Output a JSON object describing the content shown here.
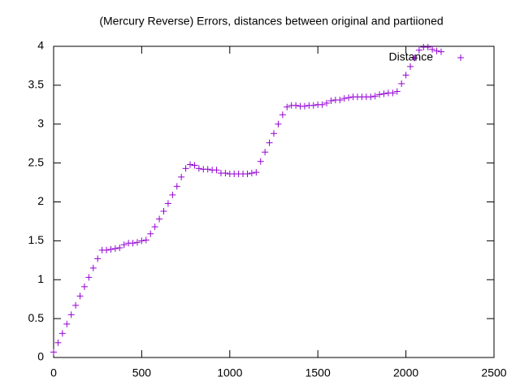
{
  "chart_data": {
    "type": "scatter",
    "title": "(Mercury Reverse) Errors, distances between original and partiioned",
    "x": [
      0,
      25,
      50,
      75,
      100,
      125,
      150,
      175,
      200,
      225,
      250,
      275,
      300,
      325,
      350,
      375,
      400,
      425,
      450,
      475,
      500,
      525,
      550,
      575,
      600,
      625,
      650,
      675,
      700,
      725,
      750,
      775,
      800,
      825,
      850,
      875,
      900,
      925,
      950,
      975,
      1000,
      1025,
      1050,
      1075,
      1100,
      1125,
      1150,
      1175,
      1200,
      1225,
      1250,
      1275,
      1300,
      1325,
      1350,
      1375,
      1400,
      1425,
      1450,
      1475,
      1500,
      1525,
      1550,
      1575,
      1600,
      1625,
      1650,
      1675,
      1700,
      1725,
      1750,
      1775,
      1800,
      1825,
      1850,
      1875,
      1900,
      1925,
      1950,
      1975,
      2000,
      2025,
      2050,
      2075,
      2100,
      2125,
      2150,
      2175,
      2200
    ],
    "series": [
      {
        "name": "Distance",
        "color": "#9400d3",
        "values": [
          0.07,
          0.19,
          0.31,
          0.43,
          0.55,
          0.67,
          0.79,
          0.91,
          1.03,
          1.15,
          1.27,
          1.38,
          1.38,
          1.39,
          1.4,
          1.41,
          1.45,
          1.47,
          1.47,
          1.48,
          1.5,
          1.51,
          1.59,
          1.68,
          1.78,
          1.88,
          1.98,
          2.09,
          2.2,
          2.32,
          2.43,
          2.48,
          2.47,
          2.43,
          2.42,
          2.42,
          2.41,
          2.41,
          2.37,
          2.37,
          2.36,
          2.36,
          2.36,
          2.36,
          2.36,
          2.37,
          2.38,
          2.52,
          2.64,
          2.76,
          2.88,
          3.0,
          3.12,
          3.22,
          3.24,
          3.24,
          3.23,
          3.23,
          3.24,
          3.24,
          3.25,
          3.25,
          3.27,
          3.3,
          3.31,
          3.31,
          3.33,
          3.34,
          3.35,
          3.35,
          3.35,
          3.35,
          3.35,
          3.36,
          3.38,
          3.39,
          3.4,
          3.4,
          3.42,
          3.52,
          3.63,
          3.74,
          3.85,
          3.95,
          3.99,
          3.99,
          3.96,
          3.94,
          3.93
        ]
      }
    ],
    "xlim": [
      0,
      2500
    ],
    "xticks": [
      0,
      500,
      1000,
      1500,
      2000,
      2500
    ],
    "ylim": [
      0,
      4
    ],
    "yticks": [
      0,
      0.5,
      1,
      1.5,
      2,
      2.5,
      3,
      3.5,
      4
    ],
    "legend": "top-right"
  }
}
